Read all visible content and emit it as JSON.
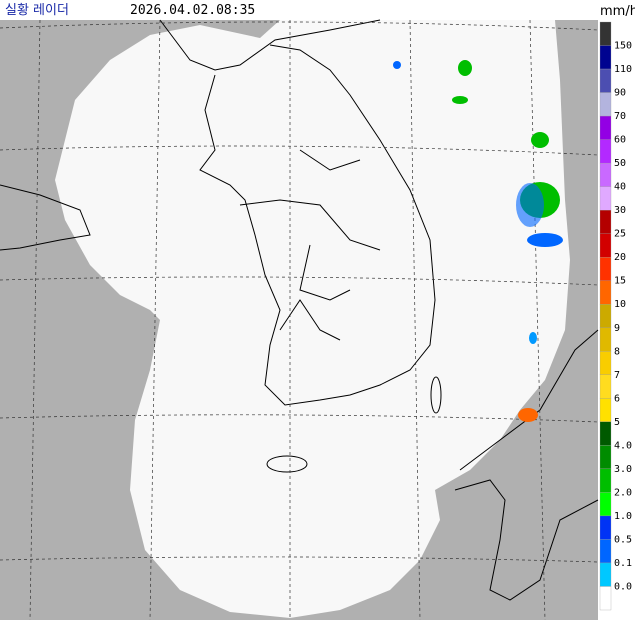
{
  "header": {
    "title": "실황 레이더",
    "time": "2026.04.02.08:35"
  },
  "legend": {
    "unit": "mm/h",
    "labels": [
      "150",
      "110",
      "90",
      "70",
      "60",
      "50",
      "40",
      "30",
      "25",
      "20",
      "15",
      "10",
      "9",
      "8",
      "7",
      "6",
      "5",
      "4.0",
      "3.0",
      "2.0",
      "1.0",
      "0.5",
      "0.1",
      "0.0"
    ],
    "colors": [
      "#333333",
      "#000390",
      "#4c4eb1",
      "#b3b4de",
      "#9300e4",
      "#b329ff",
      "#c969ff",
      "#e0a9ff",
      "#b40000",
      "#d20000",
      "#ff3200",
      "#ff6600",
      "#ccaa00",
      "#e0b900",
      "#f9cd00",
      "#ffdc1f",
      "#ffe100",
      "#005a00",
      "#008c00",
      "#00be00",
      "#00ff00",
      "#0033f5",
      "#0066ff",
      "#00c8ff",
      "#ffffff"
    ]
  }
}
